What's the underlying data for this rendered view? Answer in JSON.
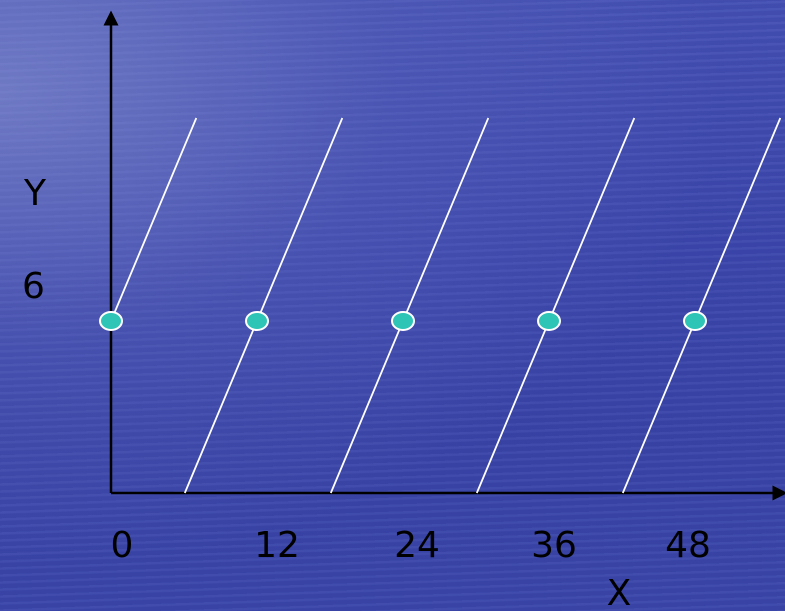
{
  "chart_data": {
    "type": "scatter",
    "xlabel": "X",
    "ylabel": "Y",
    "x_tick_labels": [
      "0",
      "12",
      "24",
      "36",
      "48"
    ],
    "y_tick_labels": [
      "6"
    ],
    "points": [
      {
        "x": 0,
        "y": 6
      },
      {
        "x": 12,
        "y": 6
      },
      {
        "x": 24,
        "y": 6
      },
      {
        "x": 36,
        "y": 6
      },
      {
        "x": 48,
        "y": 6
      }
    ],
    "colors": {
      "axis": "#000000",
      "line": "#ffffff",
      "point_fill": "#2ec4b6",
      "point_stroke": "#ffffff",
      "text": "#000000"
    }
  }
}
